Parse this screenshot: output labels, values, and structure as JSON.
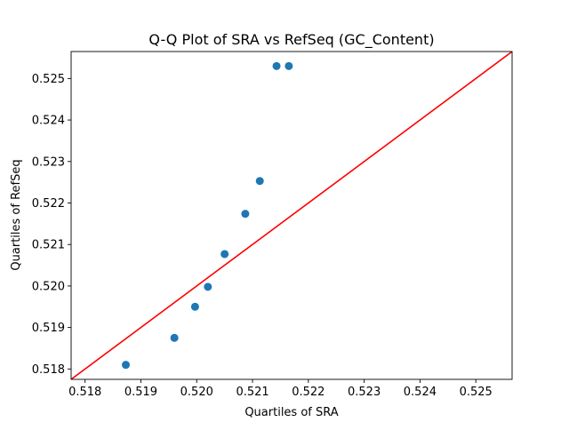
{
  "chart_data": {
    "type": "scatter",
    "title": "Q-Q Plot of SRA vs RefSeq (GC_Content)",
    "xlabel": "Quartiles of SRA",
    "ylabel": "Quartiles of RefSeq",
    "xlim": [
      0.51775,
      0.52565
    ],
    "ylim": [
      0.51775,
      0.52565
    ],
    "xticks": [
      0.518,
      0.519,
      0.52,
      0.521,
      0.522,
      0.523,
      0.524,
      0.525
    ],
    "yticks": [
      0.518,
      0.519,
      0.52,
      0.521,
      0.522,
      0.523,
      0.524,
      0.525
    ],
    "xtick_labels": [
      "0.518",
      "0.519",
      "0.520",
      "0.521",
      "0.522",
      "0.523",
      "0.524",
      "0.525"
    ],
    "ytick_labels": [
      "0.518",
      "0.519",
      "0.520",
      "0.521",
      "0.522",
      "0.523",
      "0.524",
      "0.525"
    ],
    "points": [
      {
        "x": 0.51873,
        "y": 0.5181
      },
      {
        "x": 0.5196,
        "y": 0.51875
      },
      {
        "x": 0.51997,
        "y": 0.5195
      },
      {
        "x": 0.5202,
        "y": 0.51998
      },
      {
        "x": 0.5205,
        "y": 0.52077
      },
      {
        "x": 0.52087,
        "y": 0.52174
      },
      {
        "x": 0.52113,
        "y": 0.52253
      },
      {
        "x": 0.52143,
        "y": 0.5253
      },
      {
        "x": 0.52165,
        "y": 0.5253
      }
    ],
    "reference_line": {
      "from": [
        0.51775,
        0.51775
      ],
      "to": [
        0.52565,
        0.52565
      ],
      "color": "#ff0000"
    },
    "marker_color": "#1f77b4",
    "grid": false
  }
}
